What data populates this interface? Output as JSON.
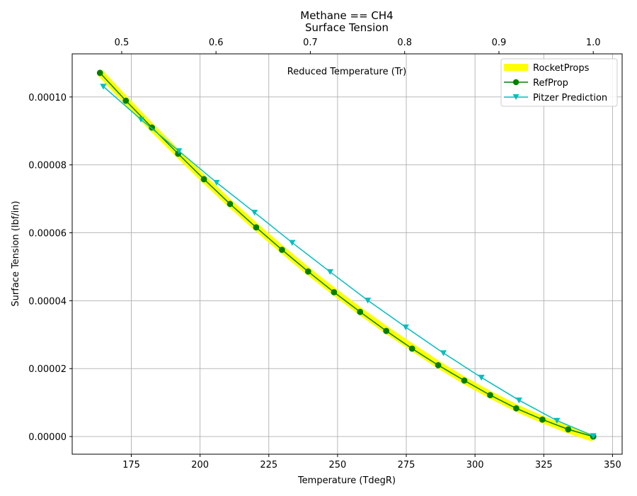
{
  "chart_data": {
    "type": "line",
    "title": "Methane == CH4",
    "subtitle": "Surface Tension",
    "xlabel": "Temperature (TdegR)",
    "ylabel": "Surface Tension (lbf/in)",
    "x2label": "Reduced Temperature (Tr)",
    "xlim": [
      153.5,
      353.5
    ],
    "ylim": [
      -5.2e-06,
      0.0001127
    ],
    "x_ticks": [
      175,
      200,
      225,
      250,
      275,
      300,
      325,
      350
    ],
    "x_tick_labels": [
      "175",
      "200",
      "225",
      "250",
      "275",
      "300",
      "325",
      "350"
    ],
    "y_ticks": [
      0,
      2e-05,
      4e-05,
      6e-05,
      8e-05,
      0.0001
    ],
    "y_tick_labels": [
      "0.00000",
      "0.00002",
      "0.00004",
      "0.00006",
      "0.00008",
      "0.00010"
    ],
    "x2_ticks": [
      0.5,
      0.6,
      0.7,
      0.8,
      0.9,
      1.0
    ],
    "x2_tick_labels": [
      "0.5",
      "0.6",
      "0.7",
      "0.8",
      "0.9",
      "1.0"
    ],
    "tc": 343.0,
    "grid": true,
    "legend_position": "top-right",
    "series": [
      {
        "name": "RocketProps",
        "color": "#ffff00",
        "style": "thick-line",
        "x": [
          163.6,
          173.0,
          182.5,
          192.0,
          201.4,
          210.9,
          220.4,
          229.8,
          239.3,
          248.7,
          258.2,
          267.7,
          277.1,
          286.6,
          296.1,
          305.5,
          315.0,
          324.5,
          333.9,
          343.0
        ],
        "y": [
          0.0001072,
          9.9e-05,
          9.1e-05,
          8.33e-05,
          7.58e-05,
          6.86e-05,
          6.17e-05,
          5.51e-05,
          4.87e-05,
          4.27e-05,
          3.69e-05,
          3.14e-05,
          2.63e-05,
          2.12e-05,
          1.65e-05,
          1.23e-05,
          8.4e-06,
          5e-06,
          2e-06,
          -5e-07
        ]
      },
      {
        "name": "RefProp",
        "color": "#008000",
        "style": "line-circle",
        "x": [
          163.6,
          173.0,
          182.5,
          192.0,
          201.4,
          210.9,
          220.4,
          229.8,
          239.3,
          248.7,
          258.2,
          267.7,
          277.1,
          286.6,
          296.1,
          305.5,
          315.0,
          324.5,
          333.9,
          343.0
        ],
        "y": [
          0.0001071,
          9.89e-05,
          9.1e-05,
          8.33e-05,
          7.58e-05,
          6.85e-05,
          6.16e-05,
          5.5e-05,
          4.86e-05,
          4.25e-05,
          3.67e-05,
          3.11e-05,
          2.59e-05,
          2.1e-05,
          1.65e-05,
          1.22e-05,
          8.3e-06,
          5e-06,
          2.1e-06,
          0.0
        ]
      },
      {
        "name": "Pitzer Prediction",
        "color": "#00bfbf",
        "style": "line-triangle-down",
        "x": [
          164.8,
          178.5,
          192.3,
          206.0,
          219.8,
          233.5,
          247.3,
          261.0,
          274.8,
          288.5,
          302.3,
          316.0,
          329.8,
          343.0
        ],
        "y": [
          0.0001031,
          9.34e-05,
          8.41e-05,
          7.48e-05,
          6.6e-05,
          5.71e-05,
          4.85e-05,
          4.01e-05,
          3.22e-05,
          2.46e-05,
          1.74e-05,
          1.07e-05,
          4.7e-06,
          2e-07
        ]
      }
    ]
  }
}
